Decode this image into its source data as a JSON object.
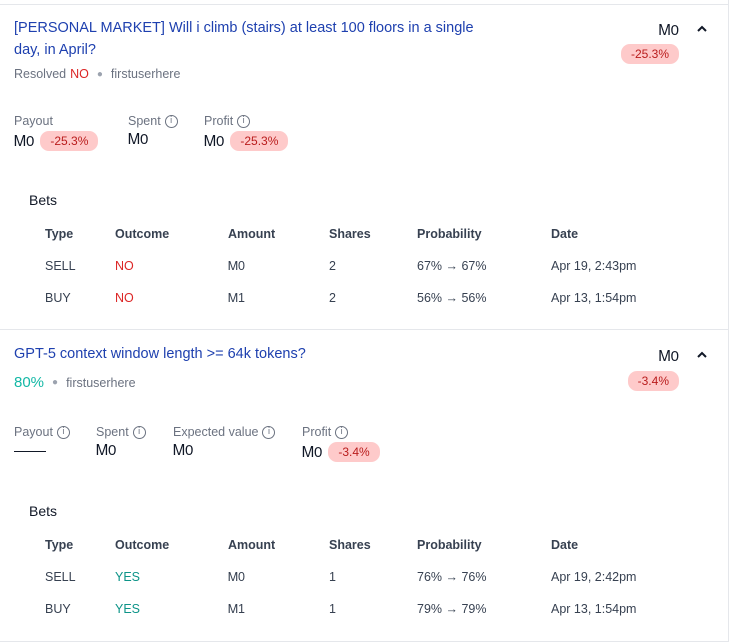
{
  "markets": [
    {
      "title": "[PERSONAL MARKET] Will i climb (stairs) at least 100 floors in a single day, in April?",
      "resolved_label": "Resolved",
      "resolved_value": "NO",
      "creator": "firstuserhere",
      "amount": "Ꮇ0",
      "change": "-25.3%",
      "stats": {
        "payout_label": "Payout",
        "payout_value": "Ꮇ0",
        "payout_change": "-25.3%",
        "spent_label": "Spent",
        "spent_value": "Ꮇ0",
        "profit_label": "Profit",
        "profit_value": "Ꮇ0",
        "profit_change": "-25.3%"
      },
      "bets_label": "Bets",
      "columns": [
        "Type",
        "Outcome",
        "Amount",
        "Shares",
        "Probability",
        "Date"
      ],
      "rows": [
        {
          "type": "SELL",
          "outcome": "NO",
          "amount": "Ꮇ0",
          "shares": "2",
          "probability": "67% → 67%",
          "date": "Apr 19, 2:43pm"
        },
        {
          "type": "BUY",
          "outcome": "NO",
          "amount": "Ꮇ1",
          "shares": "2",
          "probability": "56% → 56%",
          "date": "Apr 13, 1:54pm"
        }
      ]
    },
    {
      "title": "GPT-5 context window length >= 64k tokens?",
      "probability": "80%",
      "creator": "firstuserhere",
      "amount": "Ꮇ0",
      "change": "-3.4%",
      "stats": {
        "payout_label": "Payout",
        "spent_label": "Spent",
        "spent_value": "Ꮇ0",
        "ev_label": "Expected value",
        "ev_value": "Ꮇ0",
        "profit_label": "Profit",
        "profit_value": "Ꮇ0",
        "profit_change": "-3.4%"
      },
      "bets_label": "Bets",
      "columns": [
        "Type",
        "Outcome",
        "Amount",
        "Shares",
        "Probability",
        "Date"
      ],
      "rows": [
        {
          "type": "SELL",
          "outcome": "YES",
          "amount": "Ꮇ0",
          "shares": "1",
          "probability": "76% → 76%",
          "date": "Apr 19, 2:42pm"
        },
        {
          "type": "BUY",
          "outcome": "YES",
          "amount": "Ꮇ1",
          "shares": "1",
          "probability": "79% → 79%",
          "date": "Apr 13, 1:54pm"
        }
      ]
    }
  ],
  "icons": {
    "info": "info-icon",
    "collapse": "chevron-up-icon"
  },
  "colors": {
    "link": "#1e40af",
    "no": "#dc2626",
    "yes": "#0d9488",
    "loss_badge_bg": "#fecaca",
    "loss_badge_text": "#b91c1c"
  }
}
